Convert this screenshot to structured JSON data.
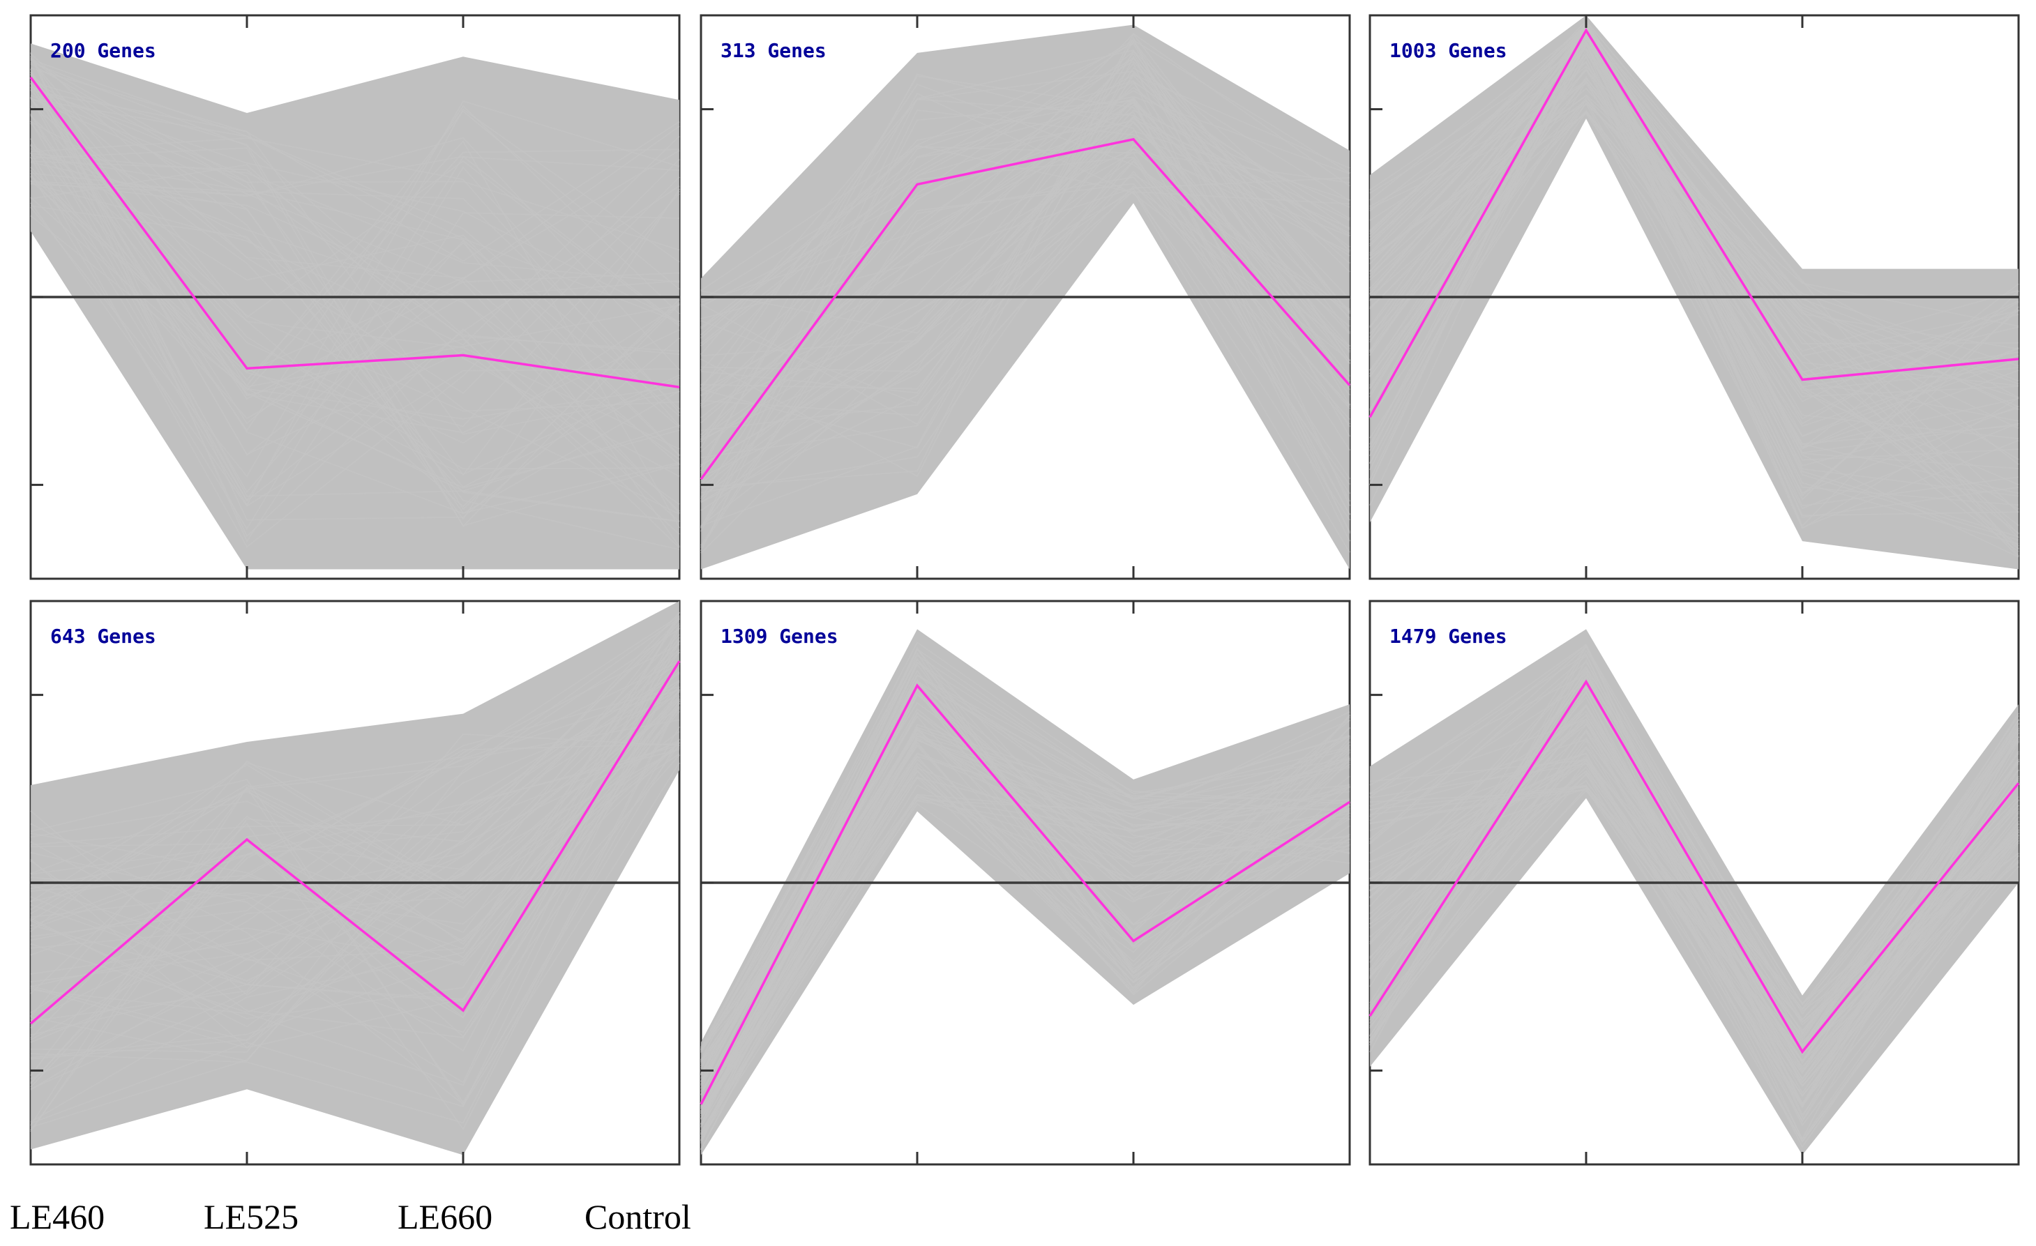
{
  "colors": {
    "profile": "#bdbdbd",
    "mean": "#ff33dd",
    "label": "#000099"
  },
  "chart_data": {
    "type": "line",
    "title": "",
    "x_categories": [
      "LE460",
      "LE525",
      "LE660",
      "Control"
    ],
    "ylim": [
      -1.5,
      1.5
    ],
    "y_ticks": [
      -1,
      0,
      1
    ],
    "y_tick_labels_shown": false,
    "zero_line": 0,
    "panels": [
      {
        "label": "200 Genes",
        "mean": [
          1.17,
          -0.38,
          -0.31,
          -0.48
        ],
        "band_upper": [
          1.35,
          0.98,
          1.28,
          1.05
        ],
        "band_lower": [
          0.35,
          -1.45,
          -1.45,
          -1.45
        ]
      },
      {
        "label": "313 Genes",
        "mean": [
          -0.97,
          0.6,
          0.84,
          -0.47
        ],
        "band_upper": [
          0.1,
          1.3,
          1.45,
          0.78
        ],
        "band_lower": [
          -1.45,
          -1.05,
          0.5,
          -1.45
        ]
      },
      {
        "label": "1003 Genes",
        "mean": [
          -0.64,
          1.42,
          -0.44,
          -0.33
        ],
        "band_upper": [
          0.65,
          1.5,
          0.15,
          0.15
        ],
        "band_lower": [
          -1.2,
          0.95,
          -1.3,
          -1.45
        ]
      },
      {
        "label": "643 Genes",
        "mean": [
          -0.75,
          0.23,
          -0.68,
          1.18
        ],
        "band_upper": [
          0.52,
          0.75,
          0.9,
          1.5
        ],
        "band_lower": [
          -1.42,
          -1.1,
          -1.45,
          0.6
        ]
      },
      {
        "label": "1309 Genes",
        "mean": [
          -1.18,
          1.05,
          -0.31,
          0.43
        ],
        "band_upper": [
          -0.85,
          1.35,
          0.55,
          0.95
        ],
        "band_lower": [
          -1.45,
          0.38,
          -0.65,
          0.05
        ]
      },
      {
        "label": "1479 Genes",
        "mean": [
          -0.71,
          1.07,
          -0.9,
          0.53
        ],
        "band_upper": [
          0.62,
          1.35,
          -0.6,
          0.95
        ],
        "band_lower": [
          -0.98,
          0.45,
          -1.45,
          0.0
        ]
      }
    ]
  }
}
